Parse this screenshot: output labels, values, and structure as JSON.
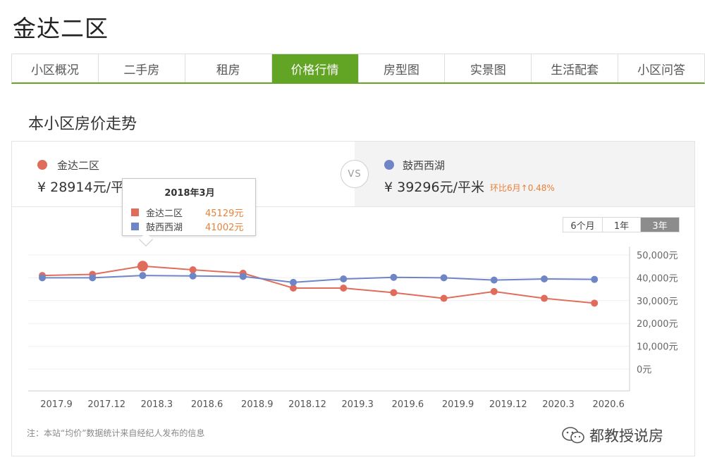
{
  "page_title": "金达二区",
  "tabs": [
    {
      "label": "小区概况",
      "active": false
    },
    {
      "label": "二手房",
      "active": false
    },
    {
      "label": "租房",
      "active": false
    },
    {
      "label": "价格行情",
      "active": true
    },
    {
      "label": "房型图",
      "active": false
    },
    {
      "label": "实景图",
      "active": false
    },
    {
      "label": "生活配套",
      "active": false
    },
    {
      "label": "小区问答",
      "active": false
    }
  ],
  "section_title": "本小区房价走势",
  "compare": {
    "left": {
      "name": "金达二区",
      "price": "¥ 28914元/平",
      "color": "#e06d5c"
    },
    "vs": "VS",
    "right": {
      "name": "鼓西西湖",
      "price": "¥ 39296元/平米",
      "change": "环比6月↑0.48%",
      "color": "#6f86c6"
    }
  },
  "range_buttons": [
    {
      "label": "6个月",
      "active": false
    },
    {
      "label": "1年",
      "active": false
    },
    {
      "label": "3年",
      "active": true
    }
  ],
  "tooltip": {
    "title": "2018年3月",
    "rows": [
      {
        "name": "金达二区",
        "value": "45129元",
        "color": "#e06d5c"
      },
      {
        "name": "鼓西西湖",
        "value": "41002元",
        "color": "#6f86c6"
      }
    ]
  },
  "chart_data": {
    "type": "line",
    "x_tick_labels": [
      "2017.9",
      "2017.12",
      "2018.3",
      "2018.6",
      "2018.9",
      "2018.12",
      "2019.3",
      "2019.6",
      "2019.9",
      "2019.12",
      "2020.3",
      "2020.6"
    ],
    "y_tick_labels": [
      "50,000元",
      "40,000元",
      "30,000元",
      "20,000元",
      "10,000元",
      "0元"
    ],
    "ylim": [
      0,
      50000
    ],
    "y_ticks": [
      50000,
      40000,
      30000,
      20000,
      10000,
      0
    ],
    "highlight_index": 2,
    "series": [
      {
        "name": "金达二区",
        "color": "#e06d5c",
        "values": [
          41000,
          41500,
          45129,
          43500,
          42000,
          35500,
          35500,
          33500,
          31000,
          34000,
          31000,
          28914
        ]
      },
      {
        "name": "鼓西西湖",
        "color": "#6f86c6",
        "values": [
          40000,
          40000,
          41002,
          40800,
          40600,
          38000,
          39500,
          40200,
          40000,
          39000,
          39500,
          39296
        ]
      }
    ]
  },
  "note": "注：本站“均价”数据统计来自经纪人发布的信息",
  "watermark": "都教授说房"
}
